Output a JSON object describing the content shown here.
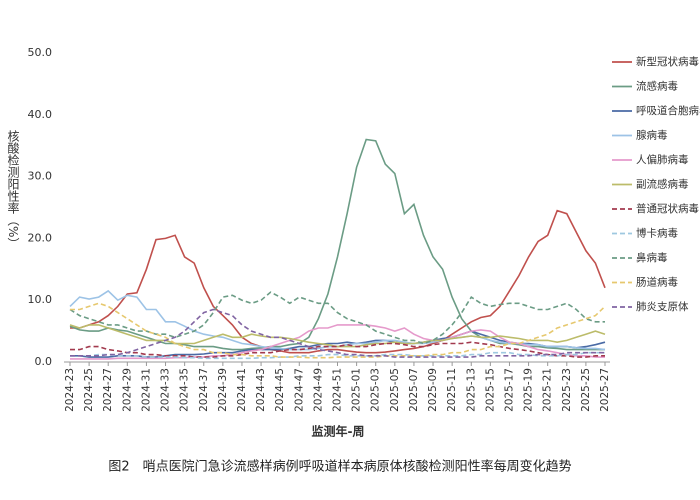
{
  "chart_data": {
    "type": "line",
    "x_label": "监测年-周",
    "y_label": "核酸检测阳性率（%）",
    "caption": "图2　哨点医院门急诊流感样病例呼吸道样本病原体核酸检测阳性率每周变化趋势",
    "categories": [
      "2024-23",
      null,
      "2024-25",
      null,
      "2024-27",
      null,
      "2024-29",
      null,
      "2024-31",
      null,
      "2024-33",
      null,
      "2024-35",
      null,
      "2024-37",
      null,
      "2024-39",
      null,
      "2024-41",
      null,
      "2024-43",
      null,
      "2024-45",
      null,
      "2024-47",
      null,
      "2024-49",
      null,
      "2024-51",
      null,
      "2025-01",
      null,
      "2025-03",
      null,
      "2025-05",
      null,
      "2025-07",
      null,
      "2025-09",
      null,
      "2025-11",
      null,
      "2025-13",
      null,
      "2025-15",
      null,
      "2025-17",
      null,
      "2025-19",
      null,
      "2025-21",
      null,
      "2025-23",
      null,
      "2025-25",
      null,
      "2025-27"
    ],
    "ylim": [
      0,
      50
    ],
    "yticks": [
      {
        "value": 0,
        "label": "0.0"
      },
      {
        "value": 10,
        "label": "10.0"
      },
      {
        "value": 20,
        "label": "20.0"
      },
      {
        "value": 30,
        "label": "30.0"
      },
      {
        "value": 40,
        "label": "40.0"
      },
      {
        "value": 50,
        "label": "50.0"
      }
    ],
    "grid": false,
    "legend": "right",
    "series": [
      {
        "name": "新型冠状病毒",
        "color": "#c0504d",
        "dashed": false,
        "values": [
          5.5,
          5.5,
          6,
          6.5,
          7.5,
          9,
          11,
          11.2,
          15,
          19.8,
          20,
          20.5,
          17,
          16,
          12,
          9,
          7.5,
          6,
          4,
          3,
          2.5,
          2,
          1.8,
          1.5,
          1.5,
          1.5,
          1.8,
          2,
          2,
          1.8,
          1.6,
          1.5,
          1.5,
          1.6,
          1.8,
          2,
          2.2,
          2.5,
          3,
          3.5,
          4.5,
          5.5,
          6.5,
          7.2,
          7.5,
          9,
          11.5,
          14,
          17,
          19.5,
          20.5,
          24.5,
          24,
          21,
          18,
          16,
          12
        ]
      },
      {
        "name": "流感病毒",
        "color": "#6b9c85",
        "dashed": false,
        "values": [
          5.8,
          5.2,
          5,
          5,
          5.5,
          5.2,
          5,
          4.5,
          4,
          3.5,
          3,
          3,
          2.8,
          2.5,
          2.5,
          2.5,
          2.2,
          2,
          2,
          2.2,
          2.3,
          2.5,
          2.5,
          2.8,
          3,
          4,
          7,
          11,
          17,
          24,
          31.5,
          36,
          35.8,
          32,
          30.5,
          24,
          25.5,
          20.5,
          17,
          15,
          10.5,
          7,
          5,
          4,
          3.5,
          3,
          3,
          2.8,
          2.5,
          2.5,
          2.3,
          2.2,
          2,
          2,
          2,
          2,
          2
        ]
      },
      {
        "name": "呼吸道合胞病毒",
        "color": "#4a6aa5",
        "dashed": false,
        "values": [
          1,
          1,
          0.8,
          0.8,
          0.8,
          1,
          1,
          1,
          0.8,
          0.8,
          1,
          1.2,
          1.2,
          1.2,
          1.3,
          1.5,
          1.5,
          1.5,
          1.8,
          2,
          2,
          2,
          2,
          2.2,
          2.5,
          2.5,
          2.8,
          3,
          3,
          3.2,
          3,
          3.2,
          3.5,
          3.5,
          3.2,
          3,
          3,
          3.2,
          3.5,
          3.8,
          4,
          4.5,
          5,
          4.5,
          4,
          3.5,
          3.2,
          3,
          3,
          2.8,
          2.5,
          2.5,
          2.5,
          2.3,
          2.5,
          2.8,
          3.2
        ]
      },
      {
        "name": "腺病毒",
        "color": "#9dc3e6",
        "dashed": false,
        "values": [
          9,
          10.5,
          10.2,
          10.5,
          11.5,
          10,
          10.8,
          10.5,
          8.5,
          8.5,
          6.5,
          6.5,
          5.8,
          5,
          4.5,
          4.2,
          4,
          3.5,
          3,
          2.8,
          2.5,
          2.3,
          2.2,
          2,
          2,
          2,
          2.2,
          2.5,
          2.5,
          2.8,
          3,
          3,
          3.2,
          3.5,
          3.5,
          3.2,
          3,
          3,
          3.2,
          3.5,
          3.8,
          4,
          4.2,
          4,
          3.5,
          3.2,
          3,
          3,
          2.8,
          2.8,
          2.5,
          2.5,
          2.5,
          2.3,
          2.2,
          2.2,
          2
        ]
      },
      {
        "name": "人偏肺病毒",
        "color": "#e59acb",
        "dashed": false,
        "values": [
          0.5,
          0.5,
          0.5,
          0.5,
          0.5,
          0.6,
          0.6,
          0.6,
          0.6,
          0.6,
          0.6,
          0.7,
          0.7,
          0.8,
          0.8,
          1,
          1,
          1.2,
          1.5,
          1.8,
          2,
          2.5,
          3,
          3.5,
          4,
          5,
          5.5,
          5.5,
          6,
          6,
          6,
          6,
          5.8,
          5.5,
          5,
          5.5,
          4.5,
          3.8,
          3.5,
          3.5,
          4,
          4.5,
          5,
          5.2,
          5,
          4,
          3.2,
          3,
          2.5,
          2,
          1.8,
          1.5,
          1.2,
          1,
          1,
          0.8,
          0.8
        ]
      },
      {
        "name": "副流感病毒",
        "color": "#bcbc6a",
        "dashed": false,
        "values": [
          6,
          5.5,
          6,
          6,
          5.5,
          5,
          4.5,
          4,
          3.5,
          3.5,
          3.5,
          3,
          3,
          3,
          3.5,
          4,
          4.5,
          4,
          4,
          4.5,
          4.2,
          4,
          4,
          3.8,
          3.5,
          3.2,
          3,
          2.8,
          2.5,
          2.5,
          2.5,
          2.8,
          3,
          3,
          3.2,
          3,
          3,
          3.2,
          3.5,
          3.5,
          3.8,
          4,
          4.2,
          4,
          4,
          4.2,
          4,
          3.8,
          3.5,
          3.5,
          3.5,
          3.2,
          3.5,
          4,
          4.5,
          5,
          4.5
        ]
      },
      {
        "name": "普通冠状病毒",
        "color": "#a23a4e",
        "dashed": true,
        "values": [
          2,
          2,
          2.5,
          2.5,
          2,
          1.8,
          1.5,
          1.5,
          1.2,
          1.2,
          1,
          1,
          1,
          0.8,
          0.8,
          0.8,
          1,
          1,
          1.2,
          1.5,
          1.5,
          1.5,
          1.8,
          2,
          2,
          2.2,
          2.5,
          2.5,
          2.5,
          2.8,
          2.5,
          2.5,
          2.8,
          3,
          3,
          2.8,
          2.5,
          2.5,
          2.8,
          3,
          3,
          3,
          3.2,
          3,
          2.8,
          2.5,
          2.2,
          2,
          1.8,
          1.5,
          1.2,
          1,
          1,
          0.8,
          0.8,
          1,
          1
        ]
      },
      {
        "name": "博卡病毒",
        "color": "#9ec8e0",
        "dashed": true,
        "values": [
          1,
          1,
          1,
          1.2,
          1.2,
          1,
          1,
          1,
          0.8,
          0.8,
          0.8,
          0.8,
          0.7,
          0.7,
          0.6,
          0.6,
          0.6,
          0.6,
          0.6,
          0.6,
          0.7,
          0.7,
          0.8,
          0.8,
          1,
          1,
          1,
          1.2,
          1.2,
          1,
          1,
          1,
          1,
          1.2,
          1.2,
          1.2,
          1,
          1,
          1,
          1,
          1,
          1,
          1.2,
          1.2,
          1.5,
          1.5,
          1.5,
          1.2,
          1.2,
          1,
          1,
          1,
          1.2,
          1.2,
          1.5,
          1.5,
          1.5
        ]
      },
      {
        "name": "鼻病毒",
        "color": "#6b9c85",
        "dashed": true,
        "values": [
          8.5,
          7.5,
          7,
          6.5,
          6,
          6,
          5.5,
          5,
          5,
          4.5,
          4.5,
          4,
          4.5,
          5,
          6,
          8,
          10.5,
          10.8,
          10,
          9.5,
          10,
          11.3,
          10.5,
          9.5,
          10.5,
          10,
          9.5,
          9.5,
          8,
          7,
          6.5,
          6,
          5,
          4.5,
          4,
          3.5,
          3.5,
          3,
          3.5,
          4.5,
          6,
          8,
          10.5,
          9.5,
          9,
          9.3,
          9.5,
          9.5,
          9,
          8.5,
          8.5,
          9,
          9.5,
          8.5,
          7,
          6.5,
          6.5
        ]
      },
      {
        "name": "肠道病毒",
        "color": "#e6c86e",
        "dashed": true,
        "values": [
          8.5,
          8.5,
          9,
          9.5,
          9,
          8,
          7,
          6,
          5,
          4.5,
          4,
          3,
          2.5,
          2,
          2,
          1.5,
          1.5,
          1.2,
          1.2,
          1,
          1,
          1,
          0.8,
          0.8,
          0.8,
          0.7,
          0.7,
          0.7,
          0.8,
          0.8,
          0.8,
          0.8,
          0.8,
          1,
          1,
          1,
          1,
          1,
          1.2,
          1.2,
          1.5,
          1.5,
          2,
          2,
          2.5,
          2.5,
          3,
          3,
          3.5,
          4,
          4.5,
          5.5,
          6,
          6.5,
          7,
          7.5,
          9
        ]
      },
      {
        "name": "肺炎支原体",
        "color": "#8064a2",
        "dashed": true,
        "values": [
          1,
          1,
          1,
          1,
          1.2,
          1.2,
          1.5,
          2,
          2.5,
          3,
          3.5,
          4,
          5,
          6.5,
          8,
          8.5,
          8,
          7.5,
          6,
          5,
          4.5,
          4,
          4,
          3.5,
          3,
          2.5,
          2,
          1.8,
          1.5,
          1.2,
          1.2,
          1,
          1,
          1,
          0.8,
          0.8,
          0.8,
          0.8,
          0.8,
          0.8,
          0.8,
          0.8,
          0.8,
          1,
          1,
          1,
          1,
          1,
          1,
          1.2,
          1.2,
          1.2,
          1.5,
          1.5,
          1.5,
          1.5,
          1.5
        ]
      }
    ]
  }
}
